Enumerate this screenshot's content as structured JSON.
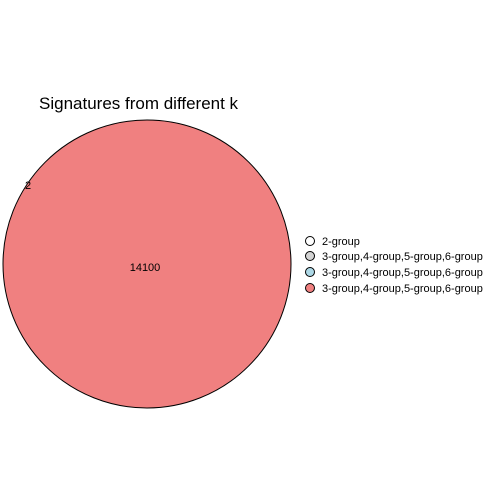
{
  "title": "Signatures from different k",
  "regions": [
    {
      "count": "14100"
    },
    {
      "count": "2"
    }
  ],
  "legend": {
    "items": [
      {
        "label": "2-group",
        "color": "#ffffff"
      },
      {
        "label": "3-group,4-group,5-group,6-group",
        "color": "#d3d3d3"
      },
      {
        "label": "3-group,4-group,5-group,6-group",
        "color": "#add8e6"
      },
      {
        "label": "3-group,4-group,5-group,6-group",
        "color": "#f08080"
      }
    ]
  }
}
